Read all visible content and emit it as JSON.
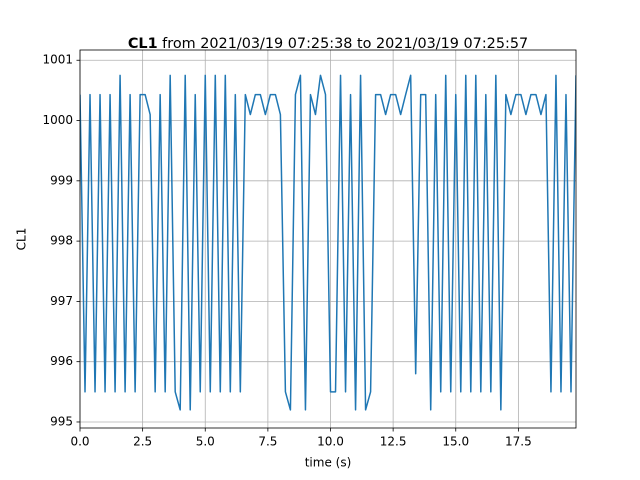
{
  "chart_data": {
    "type": "line",
    "title": "CL1",
    "subtitle": " from 2021/03/19 07:25:38 to 2021/03/19 07:25:57",
    "x_label": "time (s)",
    "y_label": "CL1",
    "xlim": [
      0,
      19.8
    ],
    "ylim": [
      994.9,
      1001.17
    ],
    "xticks": [
      {
        "value": 0,
        "label": "0.0"
      },
      2.5,
      {
        "value": 5,
        "label": "5.0"
      },
      7.5,
      {
        "value": 10,
        "label": "10.0"
      },
      12.5,
      {
        "value": 15,
        "label": "15.0"
      },
      17.5
    ],
    "yticks": [
      995,
      996,
      997,
      998,
      999,
      1000,
      1001
    ],
    "grid": true,
    "x": [
      0,
      0.2,
      0.4,
      0.6,
      0.8,
      1,
      1.2,
      1.4,
      1.6,
      1.8,
      2,
      2.2,
      2.4,
      2.6,
      2.8,
      3,
      3.2,
      3.4,
      3.6,
      3.8,
      4,
      4.2,
      4.4,
      4.6,
      4.8,
      5,
      5.2,
      5.4,
      5.6,
      5.8,
      6,
      6.2,
      6.4,
      6.6,
      6.8,
      7,
      7.2,
      7.4,
      7.6,
      7.8,
      8,
      8.2,
      8.4,
      8.6,
      8.8,
      9,
      9.2,
      9.4,
      9.6,
      9.8,
      10,
      10.2,
      10.4,
      10.6,
      10.8,
      11,
      11.2,
      11.4,
      11.6,
      11.8,
      12,
      12.2,
      12.4,
      12.6,
      12.8,
      13,
      13.2,
      13.4,
      13.6,
      13.8,
      14,
      14.2,
      14.4,
      14.6,
      14.8,
      15,
      15.2,
      15.4,
      15.6,
      15.8,
      16,
      16.2,
      16.4,
      16.6,
      16.8,
      17,
      17.2,
      17.4,
      17.6,
      17.8,
      18,
      18.2,
      18.4,
      18.6,
      18.8,
      19,
      19.2,
      19.4,
      19.6,
      19.8
    ],
    "series": [
      {
        "name": "CL1",
        "color": "#1f77b4",
        "values": [
          1000.43,
          995.5,
          1000.43,
          995.5,
          1000.43,
          995.5,
          1000.43,
          995.5,
          1000.75,
          995.5,
          1000.43,
          995.5,
          1000.43,
          1000.43,
          1000.1,
          995.5,
          1000.43,
          995.5,
          1000.75,
          995.5,
          995.2,
          1000.75,
          995.2,
          1000.43,
          995.5,
          1000.75,
          995.5,
          1000.75,
          995.5,
          1000.75,
          995.5,
          1000.43,
          995.5,
          1000.43,
          1000.1,
          1000.43,
          1000.43,
          1000.1,
          1000.43,
          1000.43,
          1000.1,
          995.5,
          995.2,
          1000.43,
          1000.75,
          995.2,
          1000.43,
          1000.1,
          1000.75,
          1000.43,
          995.5,
          995.5,
          1000.75,
          995.5,
          1000.43,
          995.2,
          1000.75,
          995.2,
          995.5,
          1000.43,
          1000.43,
          1000.1,
          1000.43,
          1000.43,
          1000.1,
          1000.43,
          1000.75,
          995.8,
          1000.43,
          1000.43,
          995.2,
          1000.43,
          995.5,
          1000.75,
          995.5,
          1000.43,
          995.5,
          1000.75,
          995.5,
          1000.75,
          995.5,
          1000.43,
          995.5,
          1000.75,
          995.2,
          1000.43,
          1000.1,
          1000.43,
          1000.43,
          1000.1,
          1000.43,
          1000.43,
          1000.1,
          1000.43,
          995.5,
          1000.75,
          995.5,
          1000.43,
          995.5,
          1000.75
        ]
      }
    ]
  }
}
